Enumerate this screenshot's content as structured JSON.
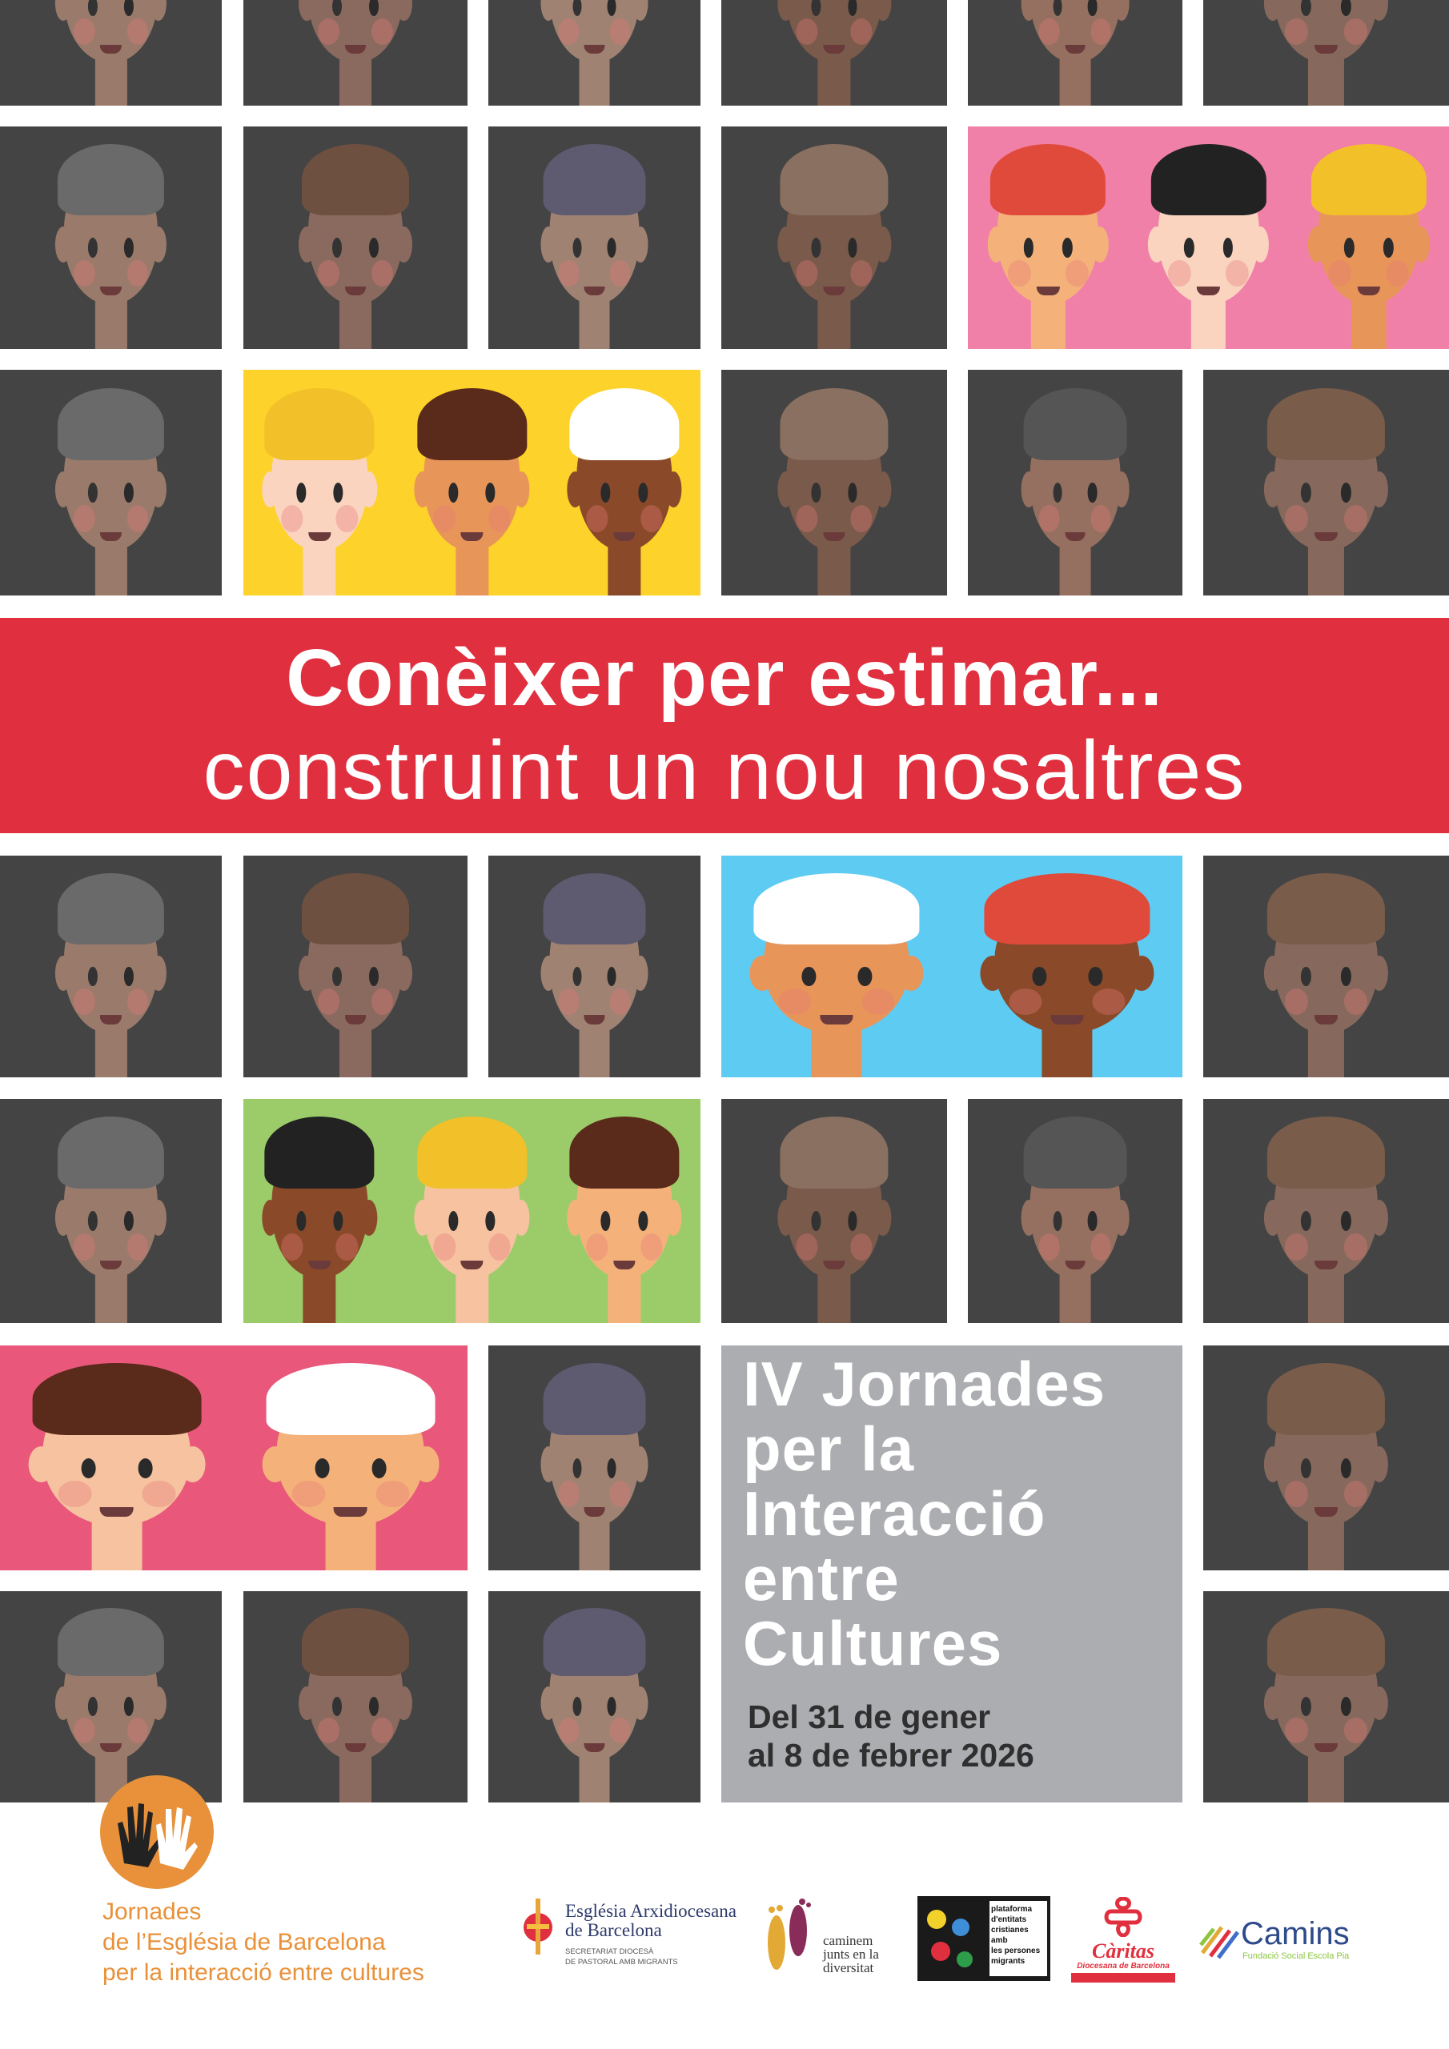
{
  "banner": {
    "title": "Conèixer per estimar...",
    "subtitle": "construint un nou nosaltres",
    "color": "#e0303f"
  },
  "event": {
    "title_lines": [
      "IV Jornades",
      "per la",
      "Interacció",
      "entre",
      "Cultures"
    ],
    "dates_lines": [
      "Del 31 de gener",
      "al 8 de febrer 2026"
    ]
  },
  "organizer": {
    "lines": [
      "Jornades",
      "de l’Església de Barcelona",
      "per la interacció entre cultures"
    ],
    "color": "#e8913a",
    "logo_icon": "hands-icon"
  },
  "partners": {
    "esglesia": {
      "name_lines": [
        "Església Arxidiocesana",
        "de Barcelona"
      ],
      "sub_lines": [
        "SECRETARIAT DIOCESÀ",
        "DE PASTORAL AMB MIGRANTS"
      ]
    },
    "caminem": {
      "lines": [
        "caminem",
        "junts en la",
        "diversitat"
      ]
    },
    "plataforma": {
      "lines": [
        "plataforma",
        "d'entitats",
        "cristianes amb",
        "les persones",
        "migrants"
      ]
    },
    "caritas": {
      "name": "Càritas",
      "sub": "Diocesana de Barcelona"
    },
    "camins": {
      "name": "Camins",
      "sub": "Fundació Social Escola Pia"
    }
  }
}
